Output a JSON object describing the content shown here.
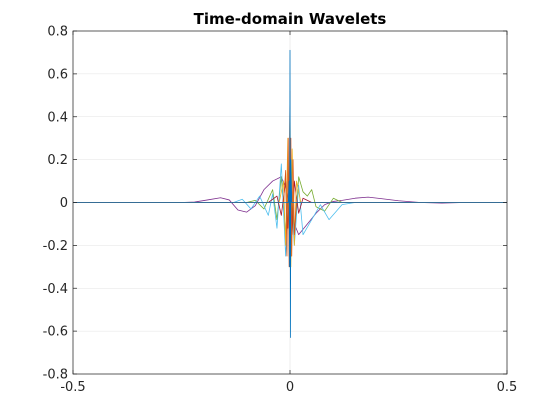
{
  "chart_data": {
    "type": "line",
    "title": "Time-domain Wavelets",
    "xlabel": "",
    "ylabel": "",
    "xlim": [
      -0.5,
      0.5
    ],
    "ylim": [
      -0.8,
      0.8
    ],
    "xticks": [
      -0.5,
      0,
      0.5
    ],
    "xtick_labels": [
      "-0.5",
      "0",
      "0.5"
    ],
    "yticks": [
      -0.8,
      -0.6,
      -0.4,
      -0.2,
      0,
      0.2,
      0.4,
      0.6,
      0.8
    ],
    "ytick_labels": [
      "-0.8",
      "-0.6",
      "-0.4",
      "-0.2",
      "0",
      "0.2",
      "0.4",
      "0.6",
      "0.8"
    ],
    "grid": true,
    "legend": "none",
    "series": [
      {
        "color": "#7E2F8E",
        "x": [
          -0.5,
          -0.25,
          -0.22,
          -0.19,
          -0.16,
          -0.14,
          -0.12,
          -0.1,
          -0.08,
          -0.06,
          -0.04,
          -0.02,
          -0.01,
          0,
          0.01,
          0.02,
          0.04,
          0.06,
          0.08,
          0.1,
          0.12,
          0.15,
          0.18,
          0.21,
          0.25,
          0.3,
          0.35,
          0.4,
          0.5
        ],
        "y": [
          0,
          0,
          0.002,
          0.012,
          0.022,
          0.012,
          -0.035,
          -0.045,
          -0.015,
          0.06,
          0.1,
          0.12,
          0.07,
          -0.04,
          -0.1,
          -0.15,
          -0.1,
          -0.05,
          -0.01,
          0.005,
          0.01,
          0.02,
          0.025,
          0.018,
          0.008,
          0,
          -0.003,
          0,
          0
        ]
      },
      {
        "color": "#77AC30",
        "x": [
          -0.5,
          -0.1,
          -0.08,
          -0.06,
          -0.04,
          -0.03,
          -0.02,
          -0.01,
          0,
          0.01,
          0.02,
          0.03,
          0.04,
          0.05,
          0.06,
          0.08,
          0.1,
          0.12,
          0.5
        ],
        "y": [
          0,
          0,
          0.01,
          -0.03,
          0.06,
          -0.08,
          0.12,
          -0.15,
          0.2,
          -0.18,
          0.12,
          0.05,
          0.03,
          0.06,
          -0.02,
          -0.04,
          0.02,
          0,
          0
        ]
      },
      {
        "color": "#4DBEEE",
        "x": [
          -0.5,
          -0.13,
          -0.11,
          -0.09,
          -0.07,
          -0.05,
          -0.04,
          -0.03,
          -0.02,
          -0.01,
          0,
          0.01,
          0.02,
          0.03,
          0.05,
          0.07,
          0.09,
          0.12,
          0.15,
          0.5
        ],
        "y": [
          0,
          0,
          0.015,
          -0.03,
          0.03,
          -0.06,
          0.04,
          -0.12,
          0.18,
          -0.25,
          0.1,
          -0.2,
          0.08,
          -0.15,
          -0.08,
          -0.01,
          -0.08,
          -0.01,
          0,
          0
        ]
      },
      {
        "color": "#A2142F",
        "x": [
          -0.5,
          -0.05,
          -0.03,
          -0.02,
          -0.01,
          -0.005,
          0,
          0.005,
          0.01,
          0.02,
          0.03,
          0.05,
          0.5
        ],
        "y": [
          0,
          0,
          0.03,
          -0.06,
          0.1,
          -0.12,
          0.18,
          -0.15,
          0.1,
          -0.05,
          0.02,
          0,
          0
        ]
      },
      {
        "color": "#EDB120",
        "x": [
          -0.5,
          -0.025,
          -0.015,
          -0.01,
          -0.005,
          -0.002,
          0,
          0.002,
          0.005,
          0.01,
          0.015,
          0.025,
          0.5
        ],
        "y": [
          0,
          0,
          0.1,
          -0.2,
          0.3,
          -0.25,
          0.5,
          -0.3,
          0.25,
          -0.2,
          0.1,
          0,
          0
        ]
      },
      {
        "color": "#D95319",
        "x": [
          -0.5,
          -0.015,
          -0.01,
          -0.007,
          -0.004,
          -0.002,
          -0.001,
          0,
          0.001,
          0.002,
          0.004,
          0.007,
          0.01,
          0.015,
          0.5
        ],
        "y": [
          0,
          0,
          0.15,
          -0.25,
          0.3,
          -0.3,
          0.25,
          0.52,
          -0.38,
          0.3,
          -0.25,
          0.2,
          -0.15,
          0,
          0
        ]
      },
      {
        "color": "#0072BD",
        "x": [
          -0.5,
          -0.004,
          -0.002,
          -0.001,
          0,
          0.001,
          0.002,
          0.004,
          0.5
        ],
        "y": [
          0,
          0,
          0.1,
          -0.3,
          0.71,
          -0.63,
          0.2,
          0,
          0
        ]
      }
    ]
  }
}
